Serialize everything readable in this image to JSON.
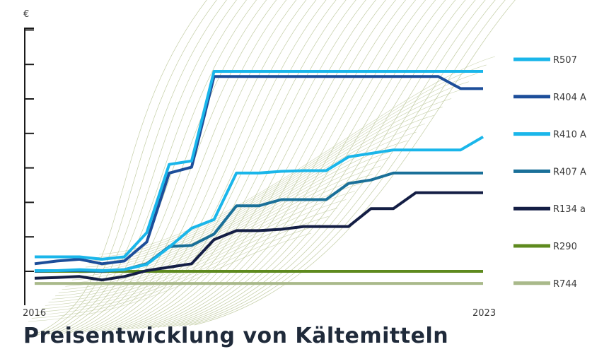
{
  "title": "Preisentwicklung von Kältemitteln",
  "chart_data": {
    "type": "line",
    "ylabel": "€",
    "xlabel": "",
    "x_tick_labels": [
      "2016",
      "2023"
    ],
    "xlim": [
      0,
      20
    ],
    "ylim": [
      0,
      7
    ],
    "grid": false,
    "legend": "right",
    "x": [
      0,
      1,
      2,
      3,
      4,
      5,
      6,
      7,
      8,
      9,
      10,
      11,
      12,
      13,
      14,
      15,
      16,
      17,
      18,
      19,
      20
    ],
    "series": [
      {
        "name": "R507",
        "color": "#1ab6ea",
        "values": [
          0.42,
          0.42,
          0.42,
          0.35,
          0.42,
          1.12,
          3.1,
          3.2,
          5.8,
          5.8,
          5.8,
          5.8,
          5.8,
          5.8,
          5.8,
          5.8,
          5.8,
          5.8,
          5.8,
          5.8,
          5.8
        ]
      },
      {
        "name": "R404 A",
        "color": "#1d4e9a",
        "values": [
          0.22,
          0.3,
          0.35,
          0.22,
          0.3,
          0.85,
          2.85,
          3.02,
          5.65,
          5.65,
          5.65,
          5.65,
          5.65,
          5.65,
          5.65,
          5.65,
          5.65,
          5.65,
          5.65,
          5.3,
          5.3
        ]
      },
      {
        "name": "R410 A",
        "color": "#1ab6ea",
        "values": [
          0.02,
          0.02,
          0.05,
          0.02,
          0.05,
          0.2,
          0.7,
          1.25,
          1.5,
          2.85,
          2.85,
          2.9,
          2.92,
          2.92,
          3.32,
          3.42,
          3.52,
          3.52,
          3.52,
          3.52,
          3.9
        ]
      },
      {
        "name": "R407 A",
        "color": "#1a7099",
        "values": [
          0.0,
          0.02,
          0.02,
          0.0,
          0.05,
          0.22,
          0.72,
          0.75,
          1.08,
          1.9,
          1.9,
          2.08,
          2.08,
          2.08,
          2.55,
          2.65,
          2.85,
          2.85,
          2.85,
          2.85,
          2.85
        ]
      },
      {
        "name": "R134 a",
        "color": "#141e45",
        "values": [
          -0.2,
          -0.18,
          -0.15,
          -0.25,
          -0.15,
          0.02,
          0.12,
          0.22,
          0.92,
          1.18,
          1.18,
          1.22,
          1.3,
          1.3,
          1.3,
          1.82,
          1.82,
          2.28,
          2.28,
          2.28,
          2.28
        ]
      },
      {
        "name": "R290",
        "color": "#5e8a1e",
        "values": [
          0,
          0,
          0,
          0,
          0,
          0,
          0,
          0,
          0,
          0,
          0,
          0,
          0,
          0,
          0,
          0,
          0,
          0,
          0,
          0,
          0
        ]
      },
      {
        "name": "R744",
        "color": "#a9b98a",
        "values": [
          -0.35,
          -0.35,
          -0.35,
          -0.35,
          -0.35,
          -0.35,
          -0.35,
          -0.35,
          -0.35,
          -0.35,
          -0.35,
          -0.35,
          -0.35,
          -0.35,
          -0.35,
          -0.35,
          -0.35,
          -0.35,
          -0.35,
          -0.35,
          -0.35
        ]
      }
    ]
  },
  "colors": {
    "axis": "#1b1b1b",
    "mesh": "#b8c494",
    "tick_text": "#3a3a3a"
  }
}
